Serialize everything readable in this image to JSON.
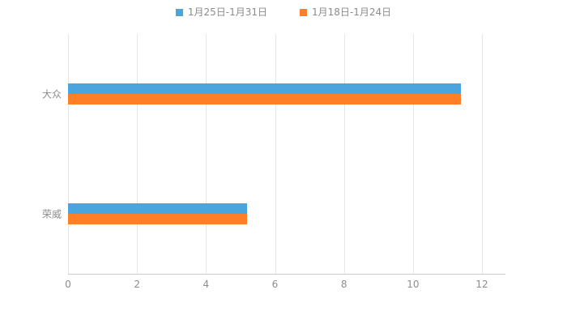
{
  "chart_data": {
    "type": "bar",
    "orientation": "horizontal",
    "title": "",
    "categories": [
      "大众",
      "荣威"
    ],
    "series": [
      {
        "name": "1月25日-1月31日",
        "color": "#4aa4de",
        "values": [
          11.4,
          5.2
        ]
      },
      {
        "name": "1月18日-1月24日",
        "color": "#ff7f27",
        "values": [
          11.4,
          5.2
        ]
      }
    ],
    "xlabel": "",
    "ylabel": "",
    "xlim": [
      0,
      12
    ],
    "xticks": [
      0,
      2,
      4,
      6,
      8,
      10,
      12
    ],
    "grid": true,
    "legend_position": "top",
    "colors": {
      "gridline": "#e6e6e6",
      "axis": "#cccccc",
      "text": "#8c8c8c",
      "background": "#ffffff"
    }
  },
  "legend": {
    "items": [
      {
        "label": "1月25日-1月31日",
        "color": "#4aa4de"
      },
      {
        "label": "1月18日-1月24日",
        "color": "#ff7f27"
      }
    ]
  }
}
